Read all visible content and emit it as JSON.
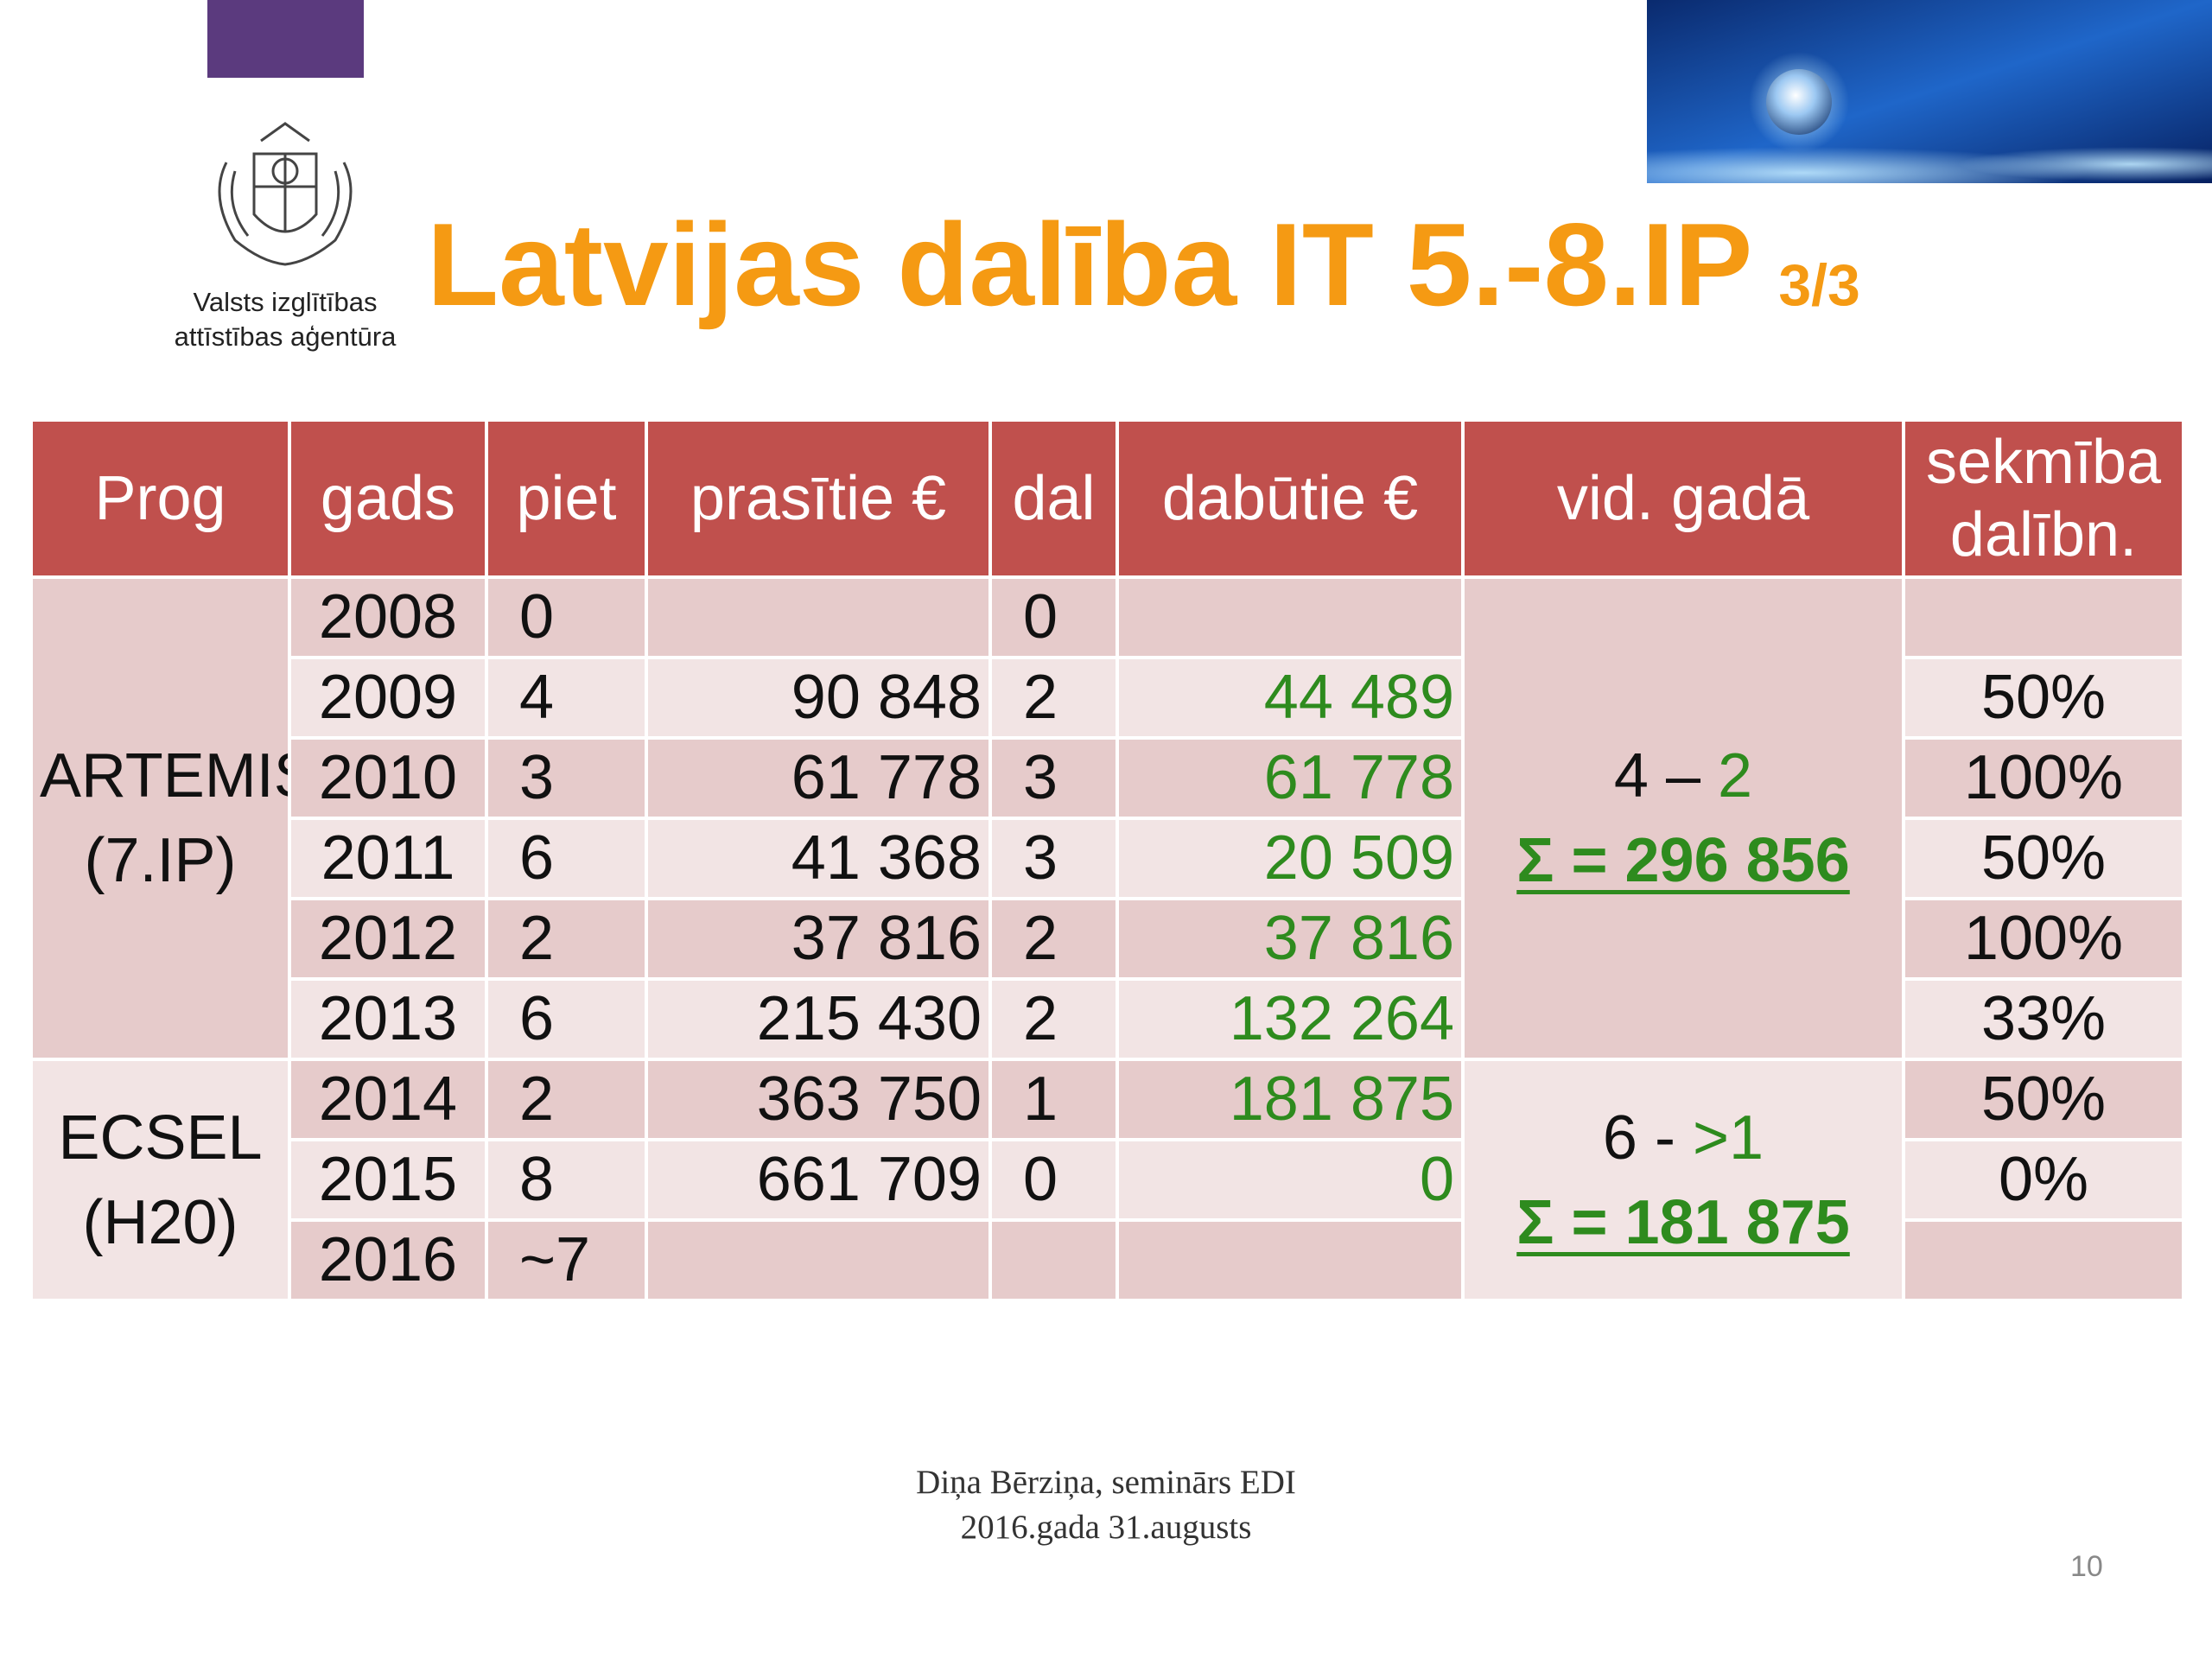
{
  "logo": {
    "line1": "Valsts izglītības",
    "line2": "attīstības aģentūra"
  },
  "title": {
    "main": "Latvijas dalība IT 5.-8.IP",
    "part": "3/3"
  },
  "table": {
    "header": [
      "Prog",
      "gads",
      "piet",
      "prasītie €",
      "dal",
      "dabūtie €",
      "vid. gadā",
      "sekmība dalībn."
    ],
    "groups": [
      {
        "prog": [
          "ARTEMIS",
          "(7.IP)"
        ],
        "summary": {
          "count": "4",
          "sep": "–",
          "got": "2",
          "sum": "Σ = 296 856"
        },
        "rows": [
          [
            "2008",
            "0",
            null,
            "0",
            null,
            null
          ],
          [
            "2009",
            "4",
            "90 848",
            "2",
            "44 489",
            "50%"
          ],
          [
            "2010",
            "3",
            "61 778",
            "3",
            "61 778",
            "100%"
          ],
          [
            "2011",
            "6",
            "41 368",
            "3",
            "20 509",
            "50%"
          ],
          [
            "2012",
            "2",
            "37 816",
            "2",
            "37 816",
            "100%"
          ],
          [
            "2013",
            "6",
            "215 430",
            "2",
            "132 264",
            "33%"
          ]
        ]
      },
      {
        "prog": [
          "ECSEL",
          "(H20)"
        ],
        "summary": {
          "count": "6",
          "sep": "-",
          "got": ">1",
          "sum": "Σ = 181 875"
        },
        "rows": [
          [
            "2014",
            "2",
            "363 750",
            "1",
            "181 875",
            "50%"
          ],
          [
            "2015",
            "8",
            "661 709",
            "0",
            "0",
            "0%"
          ],
          [
            "2016",
            "~7",
            null,
            null,
            null,
            null
          ]
        ]
      }
    ]
  },
  "footer": {
    "author": "Diņa Bērziņa, seminārs EDI",
    "date": "2016.gada 31.augusts",
    "page": "10"
  }
}
